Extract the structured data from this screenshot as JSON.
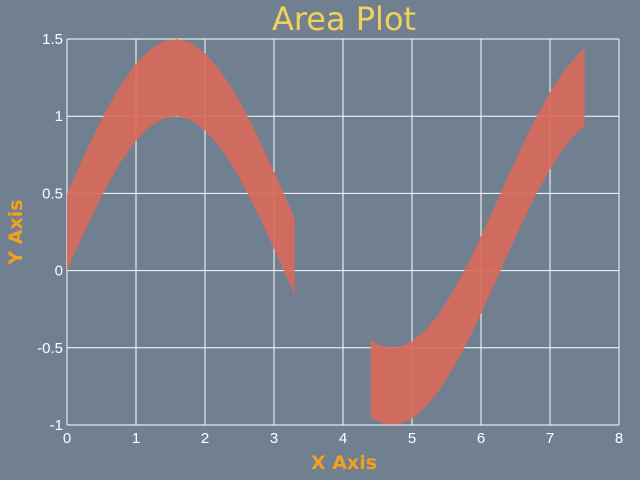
{
  "chart_data": {
    "type": "area",
    "title": "Area Plot",
    "xlabel": "X Axis",
    "ylabel": "Y Axis",
    "xlim": [
      0,
      8
    ],
    "ylim": [
      -1,
      1.5
    ],
    "xticks": [
      "0",
      "1",
      "2",
      "3",
      "4",
      "5",
      "6",
      "7",
      "8"
    ],
    "yticks": [
      "-1",
      "-0.5",
      "0",
      "0.5",
      "1",
      "1.5"
    ],
    "grid": true,
    "background_color": "#708090",
    "fill_color": "#d9685a",
    "series": [
      {
        "x": [
          0,
          0.2,
          0.4,
          0.6,
          0.8,
          1.0,
          1.2,
          1.4,
          1.6,
          1.8,
          2.0,
          2.2,
          2.4,
          2.6,
          2.8,
          3.0,
          3.2,
          3.3
        ],
        "y_lower": [
          0,
          0.199,
          0.389,
          0.565,
          0.717,
          0.841,
          0.932,
          0.985,
          1.0,
          0.974,
          0.909,
          0.808,
          0.675,
          0.516,
          0.335,
          0.141,
          -0.058,
          -0.158
        ],
        "y_upper": [
          0.5,
          0.699,
          0.889,
          1.065,
          1.217,
          1.341,
          1.432,
          1.485,
          1.5,
          1.474,
          1.409,
          1.308,
          1.175,
          1.016,
          0.835,
          0.641,
          0.442,
          0.342
        ]
      },
      {
        "x": [
          4.4,
          4.6,
          4.8,
          5.0,
          5.2,
          5.4,
          5.6,
          5.8,
          6.0,
          6.2,
          6.4,
          6.6,
          6.8,
          7.0,
          7.2,
          7.4,
          7.5
        ],
        "y_lower": [
          -0.952,
          -0.994,
          -0.996,
          -0.959,
          -0.883,
          -0.773,
          -0.631,
          -0.465,
          -0.279,
          -0.083,
          0.117,
          0.312,
          0.494,
          0.657,
          0.794,
          0.899,
          0.938
        ],
        "y_upper": [
          -0.452,
          -0.494,
          -0.496,
          -0.459,
          -0.383,
          -0.273,
          -0.131,
          0.035,
          0.221,
          0.417,
          0.617,
          0.812,
          0.994,
          1.157,
          1.294,
          1.399,
          1.438
        ]
      }
    ]
  }
}
